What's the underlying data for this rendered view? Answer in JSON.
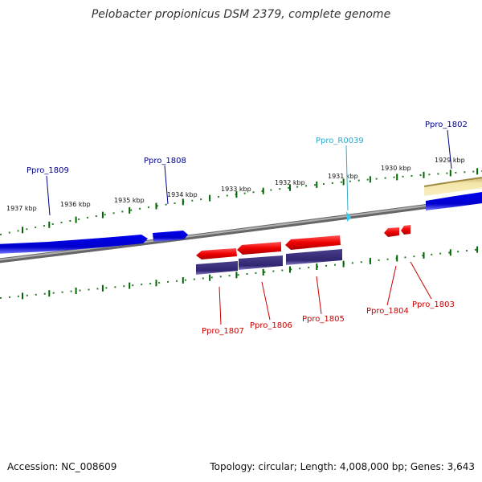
{
  "title": "Pelobacter propionicus DSM 2379, complete genome",
  "accession_text": "Accession: NC_008609",
  "topology_text": "Topology: circular; Length: 4,008,000 bp; Genes: 3,643",
  "colors": {
    "forward_cds": "#0000dd",
    "forward_cds_light": "#6666ff",
    "reverse_cds": "#ee0000",
    "reverse_cds_light": "#ff7777",
    "reverse_band": "#3a2f7a",
    "rna": "#33ccee",
    "label_forward": "#000088",
    "label_reverse": "#cc0000",
    "label_rna": "#33aacc",
    "tick": "#006600",
    "backbone": "#888888",
    "sand": "#f0e0a0"
  },
  "axis_labels": [
    {
      "id": "1937",
      "text": "1937 kbp"
    },
    {
      "id": "1936",
      "text": "1936 kbp"
    },
    {
      "id": "1935",
      "text": "1935 kbp"
    },
    {
      "id": "1934",
      "text": "1934 kbp"
    },
    {
      "id": "1933",
      "text": "1933 kbp"
    },
    {
      "id": "1932",
      "text": "1932 kbp"
    },
    {
      "id": "1931",
      "text": "1931 kbp"
    },
    {
      "id": "1930",
      "text": "1930 kbp"
    },
    {
      "id": "1929",
      "text": "1929 kbp"
    }
  ],
  "genes": [
    {
      "id": "Ppro_1809",
      "label": "Ppro_1809",
      "strand": "forward",
      "type": "cds"
    },
    {
      "id": "Ppro_1808",
      "label": "Ppro_1808",
      "strand": "forward",
      "type": "cds"
    },
    {
      "id": "Ppro_R0039",
      "label": "Ppro_R0039",
      "strand": "forward",
      "type": "rna"
    },
    {
      "id": "Ppro_1802",
      "label": "Ppro_1802",
      "strand": "forward",
      "type": "cds"
    },
    {
      "id": "Ppro_1807",
      "label": "Ppro_1807",
      "strand": "reverse",
      "type": "cds"
    },
    {
      "id": "Ppro_1806",
      "label": "Ppro_1806",
      "strand": "reverse",
      "type": "cds"
    },
    {
      "id": "Ppro_1805",
      "label": "Ppro_1805",
      "strand": "reverse",
      "type": "cds"
    },
    {
      "id": "Ppro_1804",
      "label": "Ppro_1804",
      "strand": "reverse",
      "type": "cds"
    },
    {
      "id": "Ppro_1803",
      "label": "Ppro_1803",
      "strand": "reverse",
      "type": "cds"
    }
  ]
}
